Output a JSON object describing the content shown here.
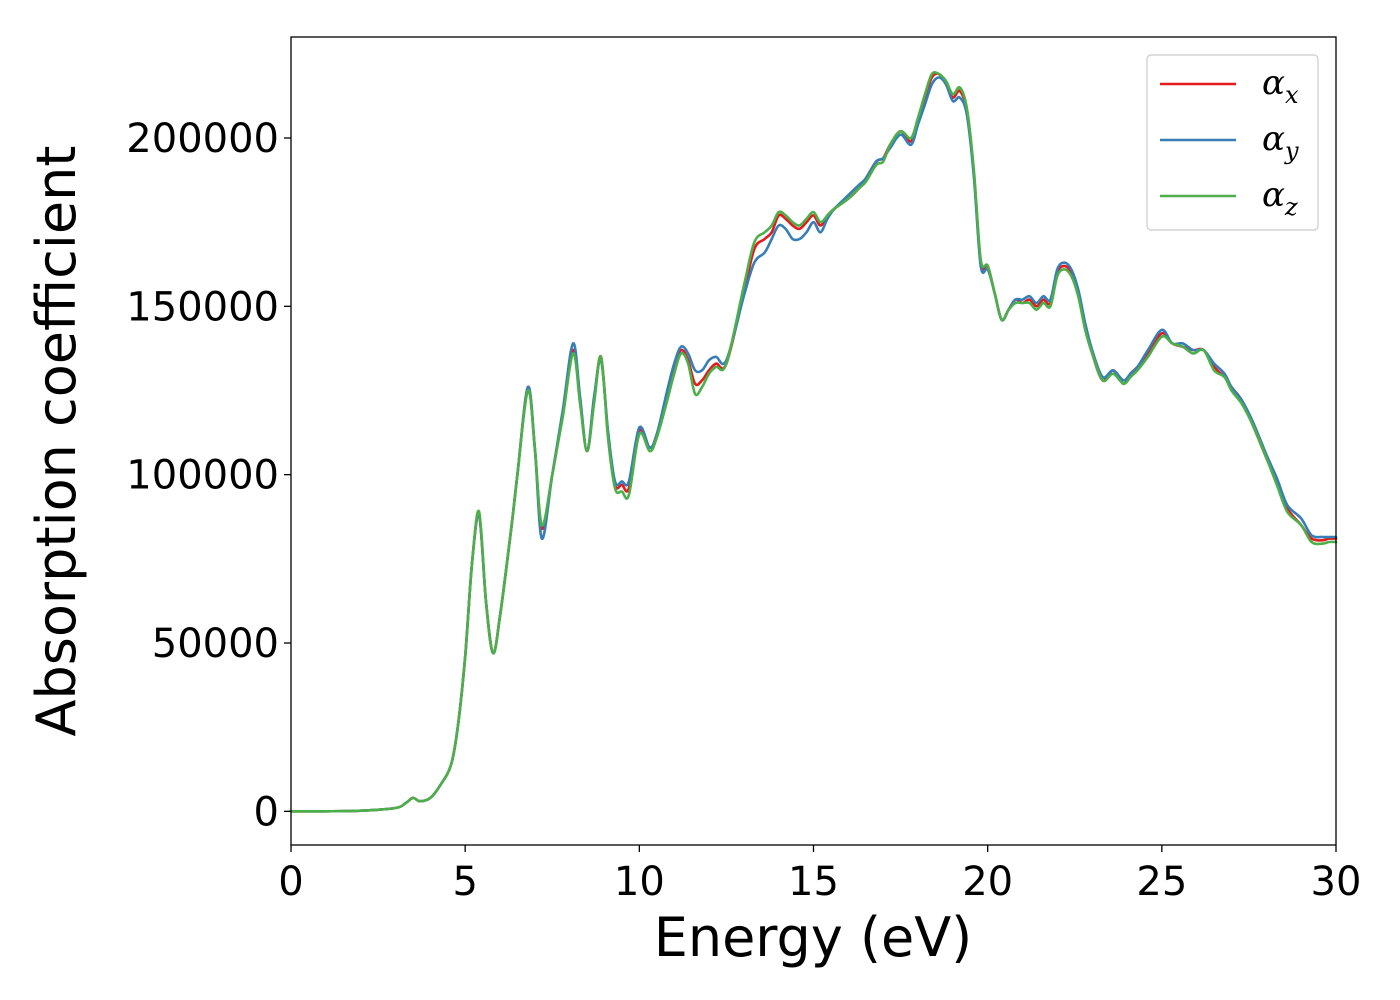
{
  "chart_data": {
    "type": "line",
    "xlabel": "Energy (eV)",
    "ylabel": "Absorption coefficient",
    "xlim": [
      0,
      30
    ],
    "ylim": [
      -10000,
      230000
    ],
    "xticks": [
      0,
      5,
      10,
      15,
      20,
      25,
      30
    ],
    "yticks": [
      0,
      50000,
      100000,
      150000,
      200000
    ],
    "grid": false,
    "legend_position": "top-right",
    "series": [
      {
        "name": "αx",
        "legend_base": "α",
        "legend_sub": "x",
        "color": "#e41a1c",
        "x": [
          0,
          1,
          2,
          3,
          3.3,
          3.5,
          3.7,
          4.0,
          4.3,
          4.6,
          4.8,
          5.0,
          5.2,
          5.4,
          5.6,
          5.8,
          6.0,
          6.3,
          6.5,
          6.8,
          7.0,
          7.2,
          7.5,
          7.8,
          8.1,
          8.3,
          8.5,
          8.7,
          8.9,
          9.1,
          9.3,
          9.5,
          9.7,
          10.0,
          10.3,
          10.5,
          10.8,
          11.0,
          11.2,
          11.4,
          11.6,
          11.8,
          12.0,
          12.2,
          12.5,
          13.0,
          13.3,
          13.6,
          13.8,
          14.0,
          14.2,
          14.4,
          14.6,
          14.8,
          15.0,
          15.2,
          15.4,
          15.6,
          16.0,
          16.3,
          16.5,
          16.8,
          17.0,
          17.2,
          17.5,
          17.8,
          18.0,
          18.2,
          18.4,
          18.6,
          18.8,
          19.0,
          19.2,
          19.4,
          19.6,
          19.8,
          20.0,
          20.2,
          20.4,
          20.6,
          20.8,
          21.0,
          21.2,
          21.4,
          21.6,
          21.8,
          22.0,
          22.2,
          22.4,
          22.6,
          22.8,
          23.0,
          23.3,
          23.6,
          23.9,
          24.1,
          24.3,
          24.6,
          25.0,
          25.3,
          25.6,
          25.9,
          26.2,
          26.5,
          26.8,
          27.0,
          27.3,
          27.6,
          28.0,
          28.3,
          28.6,
          29.0,
          29.3,
          29.6,
          29.8,
          30.0
        ],
        "values": [
          0,
          0,
          200,
          1000,
          2500,
          4000,
          3000,
          4000,
          8000,
          14000,
          26000,
          46000,
          74000,
          88000,
          62000,
          47000,
          58000,
          82000,
          100000,
          126000,
          108000,
          84000,
          100000,
          118000,
          137000,
          122000,
          107000,
          122000,
          135000,
          112000,
          97000,
          97000,
          96000,
          113000,
          108000,
          112000,
          124000,
          132000,
          137000,
          134000,
          127000,
          128000,
          131000,
          133000,
          133000,
          154000,
          167000,
          170000,
          172000,
          177000,
          176000,
          174000,
          173000,
          175000,
          177000,
          174000,
          177000,
          179000,
          182000,
          185000,
          188000,
          193000,
          194000,
          198000,
          202000,
          199000,
          205000,
          212000,
          218000,
          219000,
          216000,
          212000,
          214000,
          208000,
          190000,
          163000,
          162000,
          154000,
          146000,
          149000,
          152000,
          151000,
          152000,
          150000,
          152000,
          151000,
          160000,
          162000,
          160000,
          154000,
          144000,
          136000,
          128000,
          131000,
          127000,
          130000,
          132000,
          136000,
          142000,
          139000,
          138000,
          137000,
          137000,
          132000,
          129000,
          126000,
          122000,
          115000,
          105000,
          98000,
          90000,
          85000,
          81000,
          80500,
          81000,
          81000
        ]
      },
      {
        "name": "αy",
        "legend_base": "α",
        "legend_sub": "y",
        "color": "#377eb8",
        "x": [
          0,
          1,
          2,
          3,
          3.3,
          3.5,
          3.7,
          4.0,
          4.3,
          4.6,
          4.8,
          5.0,
          5.2,
          5.4,
          5.6,
          5.8,
          6.0,
          6.3,
          6.5,
          6.8,
          7.0,
          7.2,
          7.5,
          7.8,
          8.1,
          8.3,
          8.5,
          8.7,
          8.9,
          9.1,
          9.3,
          9.5,
          9.7,
          10.0,
          10.3,
          10.5,
          10.8,
          11.0,
          11.2,
          11.4,
          11.6,
          11.8,
          12.0,
          12.2,
          12.5,
          13.0,
          13.3,
          13.6,
          13.8,
          14.0,
          14.2,
          14.4,
          14.6,
          14.8,
          15.0,
          15.2,
          15.4,
          15.6,
          16.0,
          16.3,
          16.5,
          16.8,
          17.0,
          17.2,
          17.5,
          17.8,
          18.0,
          18.2,
          18.4,
          18.6,
          18.8,
          19.0,
          19.2,
          19.4,
          19.6,
          19.8,
          20.0,
          20.2,
          20.4,
          20.6,
          20.8,
          21.0,
          21.2,
          21.4,
          21.6,
          21.8,
          22.0,
          22.2,
          22.4,
          22.6,
          22.8,
          23.0,
          23.3,
          23.6,
          23.9,
          24.1,
          24.3,
          24.6,
          25.0,
          25.3,
          25.6,
          25.9,
          26.2,
          26.5,
          26.8,
          27.0,
          27.3,
          27.6,
          28.0,
          28.3,
          28.6,
          29.0,
          29.3,
          29.6,
          29.8,
          30.0
        ],
        "values": [
          0,
          0,
          200,
          1000,
          2500,
          4000,
          3000,
          4000,
          8000,
          14000,
          26000,
          46000,
          74000,
          88000,
          62000,
          47000,
          58000,
          82000,
          100000,
          126000,
          108000,
          81000,
          100000,
          119000,
          139000,
          123000,
          107000,
          123000,
          134000,
          113000,
          98000,
          98000,
          98000,
          114000,
          108000,
          112000,
          125000,
          133000,
          138000,
          136000,
          131000,
          131000,
          134000,
          135000,
          134000,
          153000,
          163000,
          166000,
          170000,
          174000,
          173000,
          170000,
          170000,
          172000,
          175000,
          172000,
          176000,
          179000,
          183000,
          186000,
          188000,
          193000,
          194000,
          197000,
          201000,
          198000,
          204000,
          210000,
          216000,
          218000,
          216000,
          211000,
          212000,
          207000,
          189000,
          162000,
          161000,
          154000,
          146000,
          149000,
          152000,
          152000,
          153000,
          151000,
          153000,
          152000,
          161000,
          163000,
          161000,
          155000,
          145000,
          137000,
          129000,
          131000,
          128000,
          130000,
          132000,
          137000,
          143000,
          139000,
          139000,
          137000,
          137000,
          133000,
          130000,
          126000,
          122000,
          116000,
          106000,
          99000,
          91000,
          87000,
          82000,
          81500,
          81500,
          81500
        ]
      },
      {
        "name": "αz",
        "legend_base": "α",
        "legend_sub": "z",
        "color": "#4daf4a",
        "x": [
          0,
          1,
          2,
          3,
          3.3,
          3.5,
          3.7,
          4.0,
          4.3,
          4.6,
          4.8,
          5.0,
          5.2,
          5.4,
          5.6,
          5.8,
          6.0,
          6.3,
          6.5,
          6.8,
          7.0,
          7.2,
          7.5,
          7.8,
          8.1,
          8.3,
          8.5,
          8.7,
          8.9,
          9.1,
          9.3,
          9.5,
          9.7,
          10.0,
          10.3,
          10.5,
          10.8,
          11.0,
          11.2,
          11.4,
          11.6,
          11.8,
          12.0,
          12.2,
          12.5,
          13.0,
          13.3,
          13.6,
          13.8,
          14.0,
          14.2,
          14.4,
          14.6,
          14.8,
          15.0,
          15.2,
          15.4,
          15.6,
          16.0,
          16.3,
          16.5,
          16.8,
          17.0,
          17.2,
          17.5,
          17.8,
          18.0,
          18.2,
          18.4,
          18.6,
          18.8,
          19.0,
          19.2,
          19.4,
          19.6,
          19.8,
          20.0,
          20.2,
          20.4,
          20.6,
          20.8,
          21.0,
          21.2,
          21.4,
          21.6,
          21.8,
          22.0,
          22.2,
          22.4,
          22.6,
          22.8,
          23.0,
          23.3,
          23.6,
          23.9,
          24.1,
          24.3,
          24.6,
          25.0,
          25.3,
          25.6,
          25.9,
          26.2,
          26.5,
          26.8,
          27.0,
          27.3,
          27.6,
          28.0,
          28.3,
          28.6,
          29.0,
          29.3,
          29.6,
          29.8,
          30.0
        ],
        "values": [
          0,
          0,
          200,
          1000,
          2500,
          4000,
          3000,
          4000,
          8000,
          14000,
          26000,
          46000,
          74000,
          89000,
          62000,
          47000,
          58000,
          82000,
          100000,
          125000,
          108000,
          85000,
          100000,
          117000,
          136000,
          121000,
          107000,
          121000,
          135000,
          111000,
          96000,
          95000,
          94000,
          112000,
          107000,
          111000,
          122000,
          130000,
          136000,
          133000,
          124000,
          126000,
          130000,
          132000,
          133000,
          156000,
          169000,
          172000,
          174000,
          178000,
          177000,
          175000,
          174000,
          176000,
          178000,
          175000,
          177000,
          179000,
          182000,
          185000,
          187000,
          192000,
          193000,
          198000,
          202000,
          200000,
          206000,
          213000,
          219000,
          219000,
          217000,
          213000,
          215000,
          209000,
          191000,
          164000,
          162000,
          154000,
          146000,
          149000,
          151000,
          151000,
          151000,
          149000,
          151000,
          150000,
          159000,
          161000,
          159000,
          153000,
          143000,
          136000,
          128000,
          130000,
          127000,
          129000,
          131000,
          135000,
          141000,
          139000,
          138000,
          136000,
          137000,
          131000,
          129000,
          125000,
          121000,
          115000,
          105000,
          97000,
          89000,
          85000,
          80000,
          79500,
          80000,
          80000
        ]
      }
    ]
  }
}
